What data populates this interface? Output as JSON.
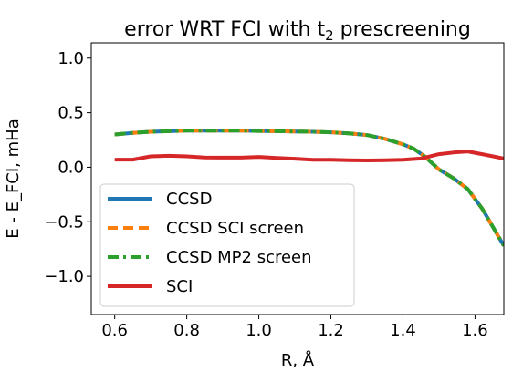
{
  "chart_data": {
    "type": "line",
    "title": "error WRT FCI with t",
    "title_subscript": "2",
    "title_suffix": " prescreening",
    "xlabel": "R, Å",
    "ylabel": "E - E_FCI, mHa",
    "xlim": [
      0.535,
      1.68
    ],
    "ylim": [
      -1.35,
      1.14
    ],
    "xticks": [
      0.6,
      0.8,
      1.0,
      1.2,
      1.4,
      1.6
    ],
    "xtick_labels": [
      "0.6",
      "0.8",
      "1.0",
      "1.2",
      "1.4",
      "1.6"
    ],
    "yticks": [
      1.0,
      0.5,
      0.0,
      -0.5,
      -1.0
    ],
    "ytick_labels": [
      "1.0",
      "0.5",
      "0.0",
      "−0.5",
      "−1.0"
    ],
    "grid": false,
    "legend_position": "bottom-left",
    "series": [
      {
        "name": "CCSD",
        "color": "#1f77b4",
        "style": "solid",
        "x": [
          0.6,
          0.65,
          0.7,
          0.75,
          0.8,
          0.85,
          0.9,
          0.95,
          1.0,
          1.05,
          1.1,
          1.15,
          1.2,
          1.25,
          1.3,
          1.35,
          1.4,
          1.43,
          1.46,
          1.5,
          1.54,
          1.58,
          1.62,
          1.65,
          1.68
        ],
        "y": [
          0.3,
          0.315,
          0.325,
          0.33,
          0.335,
          0.335,
          0.335,
          0.335,
          0.333,
          0.33,
          0.328,
          0.325,
          0.32,
          0.31,
          0.295,
          0.26,
          0.21,
          0.17,
          0.1,
          -0.02,
          -0.1,
          -0.2,
          -0.38,
          -0.55,
          -0.72
        ]
      },
      {
        "name": "CCSD SCI screen",
        "color": "#ff7f0e",
        "style": "dashed",
        "x": [
          0.6,
          0.65,
          0.7,
          0.75,
          0.8,
          0.85,
          0.9,
          0.95,
          1.0,
          1.05,
          1.1,
          1.15,
          1.2,
          1.25,
          1.3,
          1.35,
          1.4,
          1.43,
          1.46,
          1.5,
          1.54,
          1.58,
          1.62,
          1.65,
          1.68
        ],
        "y": [
          0.3,
          0.315,
          0.325,
          0.33,
          0.335,
          0.335,
          0.335,
          0.335,
          0.333,
          0.33,
          0.328,
          0.325,
          0.32,
          0.31,
          0.295,
          0.26,
          0.21,
          0.17,
          0.1,
          -0.02,
          -0.1,
          -0.2,
          -0.38,
          -0.55,
          -0.72
        ]
      },
      {
        "name": "CCSD MP2 screen",
        "color": "#2ca02c",
        "style": "dashdot",
        "x": [
          0.6,
          0.65,
          0.7,
          0.75,
          0.8,
          0.85,
          0.9,
          0.95,
          1.0,
          1.05,
          1.1,
          1.15,
          1.2,
          1.25,
          1.3,
          1.35,
          1.4,
          1.43,
          1.46,
          1.5,
          1.54,
          1.58,
          1.62,
          1.65,
          1.68
        ],
        "y": [
          0.3,
          0.315,
          0.325,
          0.33,
          0.335,
          0.335,
          0.335,
          0.335,
          0.333,
          0.33,
          0.328,
          0.325,
          0.32,
          0.31,
          0.295,
          0.26,
          0.21,
          0.17,
          0.1,
          -0.02,
          -0.1,
          -0.2,
          -0.38,
          -0.55,
          -0.72
        ]
      },
      {
        "name": "SCI",
        "color": "#d62728",
        "style": "solid",
        "x": [
          0.6,
          0.65,
          0.7,
          0.75,
          0.8,
          0.85,
          0.9,
          0.95,
          1.0,
          1.05,
          1.1,
          1.15,
          1.2,
          1.25,
          1.3,
          1.35,
          1.4,
          1.45,
          1.5,
          1.54,
          1.58,
          1.62,
          1.65,
          1.68
        ],
        "y": [
          0.07,
          0.07,
          0.1,
          0.105,
          0.1,
          0.09,
          0.088,
          0.088,
          0.095,
          0.085,
          0.078,
          0.068,
          0.068,
          0.065,
          0.062,
          0.065,
          0.068,
          0.08,
          0.12,
          0.135,
          0.145,
          0.12,
          0.1,
          0.08
        ]
      }
    ]
  }
}
